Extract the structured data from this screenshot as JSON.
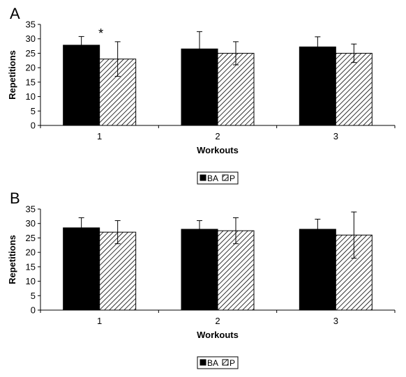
{
  "chart_data": [
    {
      "type": "bar",
      "panel_label": "A",
      "categories": [
        "1",
        "2",
        "3"
      ],
      "series": [
        {
          "name": "BA",
          "values": [
            27.8,
            26.5,
            27.2
          ],
          "errors": [
            3.0,
            6.0,
            3.5
          ],
          "color": "#000000",
          "pattern": "solid"
        },
        {
          "name": "P",
          "values": [
            23.0,
            25.0,
            25.0
          ],
          "errors": [
            6.0,
            4.0,
            3.2
          ],
          "color": "#ffffff",
          "pattern": "diagonal-hatch"
        }
      ],
      "annotations": [
        {
          "text": "*",
          "category": "1"
        }
      ],
      "xlabel": "Workouts",
      "ylabel": "Repetitions",
      "ylim": [
        0,
        35
      ],
      "yticks": [
        "0",
        "5",
        "10",
        "15",
        "20",
        "25",
        "30",
        "35"
      ],
      "legend": {
        "placement": "bottom-center",
        "items": [
          "BA",
          "P"
        ]
      },
      "grid": false
    },
    {
      "type": "bar",
      "panel_label": "B",
      "categories": [
        "1",
        "2",
        "3"
      ],
      "series": [
        {
          "name": "BA",
          "values": [
            28.5,
            28.0,
            28.0
          ],
          "errors": [
            3.5,
            3.0,
            3.5
          ],
          "color": "#000000",
          "pattern": "solid"
        },
        {
          "name": "P",
          "values": [
            27.0,
            27.5,
            26.0
          ],
          "errors": [
            4.0,
            4.5,
            8.0
          ],
          "color": "#ffffff",
          "pattern": "diagonal-hatch"
        }
      ],
      "annotations": [],
      "xlabel": "Workouts",
      "ylabel": "Repetitions",
      "ylim": [
        0,
        35
      ],
      "yticks": [
        "0",
        "5",
        "10",
        "15",
        "20",
        "25",
        "30",
        "35"
      ],
      "legend": {
        "placement": "bottom-center",
        "items": [
          "BA",
          "P"
        ]
      },
      "grid": false
    }
  ]
}
